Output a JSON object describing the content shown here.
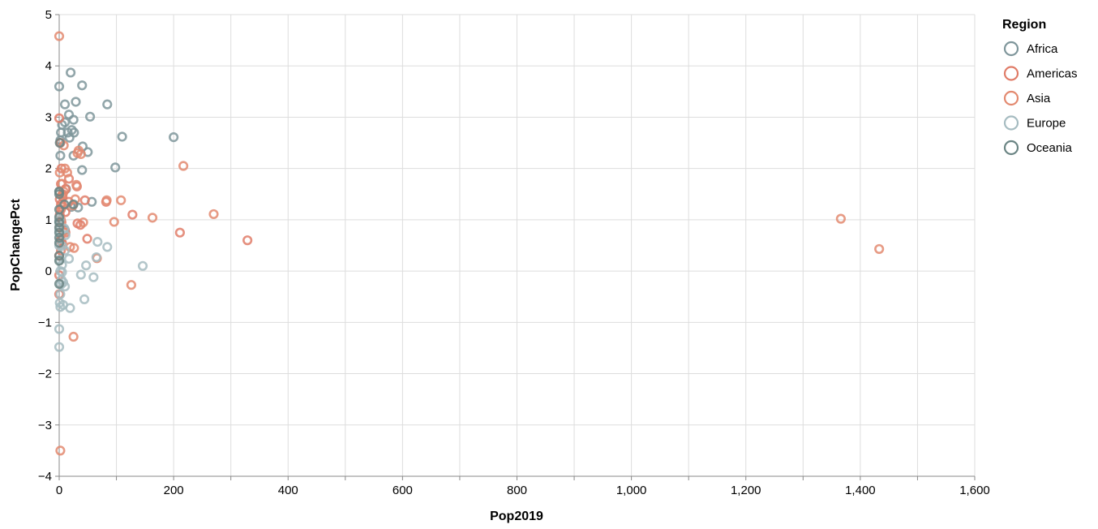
{
  "chart_data": {
    "type": "scatter",
    "xlabel": "Pop2019",
    "ylabel": "PopChangePct",
    "xlim": [
      0,
      1600
    ],
    "ylim": [
      -4,
      5
    ],
    "x_ticks": [
      "0",
      "200",
      "400",
      "600",
      "800",
      "1,000",
      "1,200",
      "1,400",
      "1,600"
    ],
    "y_ticks": [
      "−4",
      "−3",
      "−2",
      "−1",
      "0",
      "1",
      "2",
      "3",
      "4",
      "5"
    ],
    "grid": true,
    "legend": {
      "title": "Region",
      "placement": "right",
      "entries": [
        {
          "name": "Africa",
          "color": "#7f969b"
        },
        {
          "name": "Americas",
          "color": "#e07c68"
        },
        {
          "name": "Asia",
          "color": "#e38a70"
        },
        {
          "name": "Europe",
          "color": "#a6bcc1"
        },
        {
          "name": "Oceania",
          "color": "#6b8584"
        }
      ]
    },
    "series": [
      {
        "name": "Africa",
        "color": "#7f969b",
        "points": [
          [
            20,
            3.87
          ],
          [
            40,
            3.62
          ],
          [
            0,
            3.6
          ],
          [
            29,
            3.3
          ],
          [
            10,
            3.25
          ],
          [
            84,
            3.25
          ],
          [
            17,
            3.05
          ],
          [
            54,
            3.01
          ],
          [
            25,
            2.95
          ],
          [
            10,
            2.9
          ],
          [
            5,
            2.85
          ],
          [
            22,
            2.75
          ],
          [
            15,
            2.7
          ],
          [
            26,
            2.7
          ],
          [
            3,
            2.7
          ],
          [
            110,
            2.62
          ],
          [
            200,
            2.61
          ],
          [
            18,
            2.6
          ],
          [
            2,
            2.55
          ],
          [
            41,
            2.43
          ],
          [
            50,
            2.32
          ],
          [
            25,
            2.25
          ],
          [
            2,
            2.25
          ],
          [
            40,
            1.97
          ],
          [
            98,
            2.02
          ],
          [
            12,
            1.6
          ],
          [
            0,
            1.55
          ],
          [
            57,
            1.35
          ],
          [
            21,
            1.25
          ],
          [
            33,
            1.24
          ],
          [
            0,
            0.98
          ],
          [
            10,
            0.8
          ],
          [
            2,
            0.6
          ]
        ]
      },
      {
        "name": "Americas",
        "color": "#e07c68",
        "points": [
          [
            0,
            2.98
          ],
          [
            2,
            2.5
          ],
          [
            4,
            2.0
          ],
          [
            17,
            1.8
          ],
          [
            3,
            1.7
          ],
          [
            31,
            1.65
          ],
          [
            11,
            1.6
          ],
          [
            6,
            1.5
          ],
          [
            6,
            1.45
          ],
          [
            1,
            1.4
          ],
          [
            45,
            1.38
          ],
          [
            82,
            1.35
          ],
          [
            17,
            1.35
          ],
          [
            3,
            1.3
          ],
          [
            3,
            1.2
          ],
          [
            11,
            1.15
          ],
          [
            1,
            1.1
          ],
          [
            4,
            0.95
          ],
          [
            1,
            0.85
          ],
          [
            37,
            0.9
          ],
          [
            11,
            0.75
          ],
          [
            3,
            0.6
          ],
          [
            5,
            0.55
          ],
          [
            3,
            0.4
          ],
          [
            0,
            0.3
          ],
          [
            211,
            0.75
          ],
          [
            32,
            0.93
          ],
          [
            128,
            1.1
          ],
          [
            49,
            0.63
          ],
          [
            329,
            0.6
          ],
          [
            0,
            -0.08
          ],
          [
            0,
            -0.45
          ]
        ]
      },
      {
        "name": "Asia",
        "color": "#e38a70",
        "points": [
          [
            0,
            4.58
          ],
          [
            1433,
            0.43
          ],
          [
            1366,
            1.02
          ],
          [
            270,
            1.11
          ],
          [
            217,
            2.05
          ],
          [
            163,
            1.04
          ],
          [
            108,
            1.38
          ],
          [
            96,
            0.96
          ],
          [
            126,
            -0.27
          ],
          [
            66,
            0.25
          ],
          [
            42,
            0.95
          ],
          [
            34,
            2.35
          ],
          [
            32,
            2.3
          ],
          [
            30,
            1.68
          ],
          [
            24,
            1.28
          ],
          [
            25,
            -1.28
          ],
          [
            28,
            1.4
          ],
          [
            14,
            1.92
          ],
          [
            19,
            0.47
          ],
          [
            26,
            0.45
          ],
          [
            10,
            2.0
          ],
          [
            8,
            1.55
          ],
          [
            5,
            1.48
          ],
          [
            4,
            1.25
          ],
          [
            3,
            1.0
          ],
          [
            7,
            0.77
          ],
          [
            2,
            -3.5
          ],
          [
            8,
            2.45
          ],
          [
            38,
            2.28
          ],
          [
            83,
            1.38
          ],
          [
            5,
            1.7
          ],
          [
            1,
            1.92
          ]
        ]
      },
      {
        "name": "Europe",
        "color": "#a6bcc1",
        "points": [
          [
            146,
            0.1
          ],
          [
            84,
            0.47
          ],
          [
            67,
            0.57
          ],
          [
            65,
            0.27
          ],
          [
            60,
            -0.12
          ],
          [
            47,
            0.11
          ],
          [
            44,
            -0.55
          ],
          [
            38,
            -0.07
          ],
          [
            19,
            -0.72
          ],
          [
            17,
            0.24
          ],
          [
            11,
            0.7
          ],
          [
            10,
            -0.3
          ],
          [
            10,
            0.4
          ],
          [
            9,
            0.83
          ],
          [
            7,
            -0.22
          ],
          [
            7,
            -0.66
          ],
          [
            5,
            0.49
          ],
          [
            5,
            0.12
          ],
          [
            5,
            -0.02
          ],
          [
            4,
            -0.17
          ],
          [
            2,
            -0.7
          ],
          [
            2,
            -0.45
          ],
          [
            2,
            0.0
          ],
          [
            1,
            0.22
          ],
          [
            1,
            -0.62
          ],
          [
            0,
            -1.13
          ],
          [
            0,
            -1.48
          ],
          [
            0,
            0.5
          ],
          [
            0,
            0.8
          ],
          [
            3,
            -0.26
          ],
          [
            1,
            1.0
          ]
        ]
      },
      {
        "name": "Oceania",
        "color": "#6b8584",
        "points": [
          [
            25,
            1.3
          ],
          [
            0,
            1.05
          ],
          [
            0,
            0.95
          ],
          [
            0,
            0.75
          ],
          [
            0,
            0.65
          ],
          [
            0,
            0.55
          ],
          [
            0,
            0.3
          ],
          [
            0,
            0.2
          ],
          [
            0,
            -0.25
          ],
          [
            0,
            1.5
          ],
          [
            1,
            2.5
          ],
          [
            9,
            1.3
          ],
          [
            0,
            0.85
          ],
          [
            0,
            1.2
          ],
          [
            0,
            1.55
          ]
        ]
      }
    ]
  }
}
